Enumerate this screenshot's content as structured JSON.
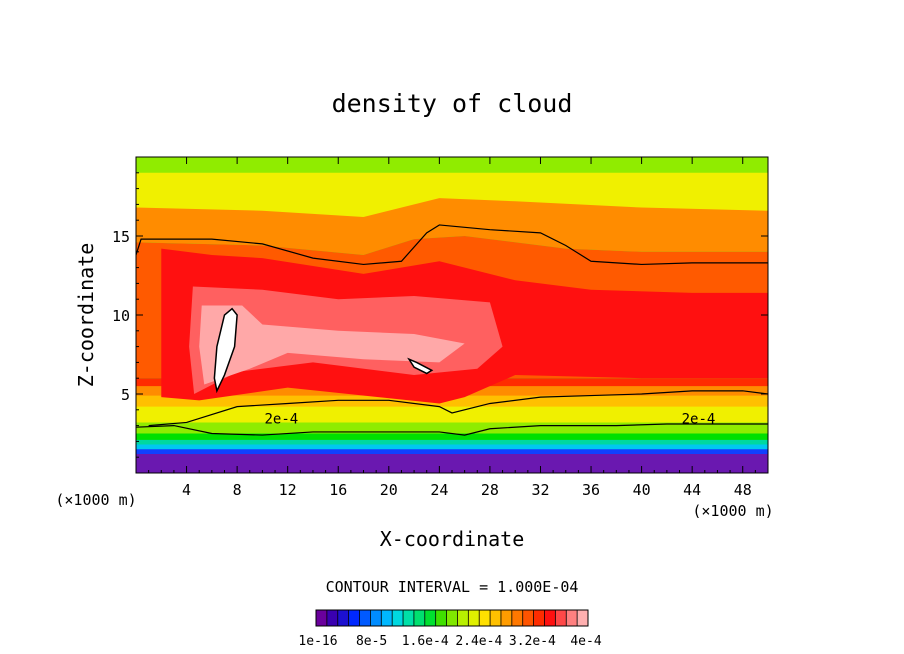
{
  "chart_data": {
    "type": "heatmap",
    "title": "density of cloud",
    "xlabel": "X-coordinate",
    "ylabel": "Z-coordinate",
    "x_unit": "(×1000 m)",
    "y_unit": "(×1000 m)",
    "xlim": [
      0,
      50
    ],
    "ylim": [
      0,
      20
    ],
    "x_ticks": [
      4,
      8,
      12,
      16,
      20,
      24,
      28,
      32,
      36,
      40,
      44,
      48
    ],
    "y_ticks": [
      5,
      10,
      15
    ],
    "contour_interval_label": "CONTOUR INTERVAL = 1.000E-04",
    "contour_labels": [
      {
        "text": "2e-4",
        "x": 11.5,
        "y": 3.0
      },
      {
        "text": "2e-4",
        "x": 44.5,
        "y": 3.0
      }
    ],
    "colorbar": {
      "tick_labels": [
        "1e-16",
        "8e-5",
        "1.6e-4",
        "2.4e-4",
        "3.2e-4",
        "4e-4"
      ],
      "colors": [
        "#6a009c",
        "#3a00b0",
        "#1c10d0",
        "#0028ff",
        "#005aff",
        "#008cff",
        "#00b8ff",
        "#00d8e0",
        "#00e0a8",
        "#00e070",
        "#00e030",
        "#40e000",
        "#80e800",
        "#b8f000",
        "#e0f000",
        "#ffe000",
        "#ffc000",
        "#ff9c00",
        "#ff7800",
        "#ff5400",
        "#ff2c00",
        "#ff1010",
        "#ff4848",
        "#ff8080",
        "#ffb0b0"
      ]
    },
    "levels": [
      {
        "name": "violet",
        "color": "#6a18b0",
        "profile": [
          [
            0,
            1.2
          ],
          [
            50,
            1.2
          ]
        ]
      },
      {
        "name": "blue",
        "color": "#1040ff",
        "profile": [
          [
            0,
            1.5
          ],
          [
            50,
            1.5
          ]
        ]
      },
      {
        "name": "cyan",
        "color": "#00c8f0",
        "profile": [
          [
            0,
            1.8
          ],
          [
            50,
            1.8
          ]
        ]
      },
      {
        "name": "teal",
        "color": "#00d8a0",
        "profile": [
          [
            0,
            2.1
          ],
          [
            50,
            2.1
          ]
        ]
      },
      {
        "name": "green",
        "color": "#00e000",
        "profile": [
          [
            0,
            2.5
          ],
          [
            50,
            2.5
          ]
        ]
      },
      {
        "name": "yellow-green",
        "color": "#90ec00",
        "profile": [
          [
            0,
            3.2
          ],
          [
            50,
            3.2
          ]
        ]
      },
      {
        "name": "yellow",
        "color": "#f0f000",
        "profile": [
          [
            0,
            4.2
          ],
          [
            50,
            4.2
          ]
        ]
      },
      {
        "name": "orange-light",
        "color": "#ffc000",
        "profile": [
          [
            0,
            4.9
          ],
          [
            50,
            4.9
          ]
        ]
      },
      {
        "name": "orange",
        "color": "#ff8c00",
        "profile": [
          [
            0,
            5.5
          ],
          [
            50,
            5.5
          ]
        ]
      },
      {
        "name": "red",
        "color": "#ff2c00",
        "profile": [
          [
            0,
            6.0
          ],
          [
            50,
            6.0
          ]
        ]
      }
    ],
    "top_layers": [
      {
        "name": "orange-top",
        "color": "#ff8c00",
        "profile": [
          [
            0,
            14.6
          ],
          [
            10,
            14.4
          ],
          [
            18,
            13.8
          ],
          [
            22,
            14.8
          ],
          [
            26,
            15.0
          ],
          [
            34,
            14.2
          ],
          [
            40,
            14.0
          ],
          [
            50,
            14.0
          ]
        ]
      },
      {
        "name": "yellow-top",
        "color": "#f0f000",
        "profile": [
          [
            0,
            16.8
          ],
          [
            10,
            16.6
          ],
          [
            18,
            16.2
          ],
          [
            24,
            17.4
          ],
          [
            30,
            17.2
          ],
          [
            40,
            16.8
          ],
          [
            50,
            16.6
          ]
        ]
      },
      {
        "name": "green-top",
        "color": "#90ec00",
        "profile": [
          [
            0,
            19.0
          ],
          [
            50,
            19.0
          ]
        ]
      }
    ],
    "cloud_core": [
      {
        "color": "#ff1010",
        "polygon": [
          [
            2,
            14.2
          ],
          [
            6,
            13.8
          ],
          [
            10,
            13.6
          ],
          [
            18,
            12.6
          ],
          [
            24,
            13.4
          ],
          [
            30,
            12.2
          ],
          [
            36,
            11.6
          ],
          [
            44,
            11.4
          ],
          [
            50,
            11.4
          ],
          [
            50,
            6.0
          ],
          [
            40,
            6.0
          ],
          [
            30,
            6.2
          ],
          [
            26,
            4.8
          ],
          [
            24,
            4.4
          ],
          [
            12,
            5.4
          ],
          [
            5,
            4.6
          ],
          [
            2,
            4.8
          ]
        ]
      },
      {
        "color": "#ff6060",
        "polygon": [
          [
            4.5,
            11.8
          ],
          [
            10,
            11.6
          ],
          [
            16,
            11.0
          ],
          [
            22,
            11.2
          ],
          [
            28,
            10.8
          ],
          [
            29,
            8.0
          ],
          [
            27,
            6.6
          ],
          [
            22,
            6.2
          ],
          [
            14,
            7.0
          ],
          [
            8,
            6.4
          ],
          [
            4.6,
            5.0
          ],
          [
            4.2,
            8.0
          ]
        ]
      },
      {
        "color": "#ffa8a8",
        "polygon": [
          [
            5.2,
            10.6
          ],
          [
            8.4,
            10.6
          ],
          [
            10,
            9.4
          ],
          [
            16,
            9.0
          ],
          [
            22,
            8.8
          ],
          [
            26,
            8.2
          ],
          [
            24,
            7.0
          ],
          [
            18,
            7.2
          ],
          [
            12,
            7.6
          ],
          [
            9,
            6.6
          ],
          [
            5.4,
            5.6
          ],
          [
            5.0,
            8.0
          ]
        ]
      }
    ],
    "white_patches": [
      {
        "name": "max-core-left",
        "polygon": [
          [
            6.2,
            6.0
          ],
          [
            6.4,
            8.0
          ],
          [
            7.0,
            10.0
          ],
          [
            7.6,
            10.4
          ],
          [
            8.0,
            10.0
          ],
          [
            7.8,
            8.0
          ],
          [
            7.0,
            6.2
          ],
          [
            6.4,
            5.2
          ]
        ]
      },
      {
        "name": "max-core-mid",
        "polygon": [
          [
            21.6,
            7.2
          ],
          [
            22.2,
            7.0
          ],
          [
            23.4,
            6.5
          ],
          [
            23.0,
            6.3
          ],
          [
            22.0,
            6.7
          ]
        ]
      }
    ],
    "contour_lines": [
      {
        "name": "upper-contour",
        "points": [
          [
            0,
            13.8
          ],
          [
            0.4,
            14.8
          ],
          [
            6,
            14.8
          ],
          [
            10,
            14.5
          ],
          [
            14,
            13.6
          ],
          [
            18,
            13.2
          ],
          [
            21,
            13.4
          ],
          [
            23,
            15.2
          ],
          [
            24,
            15.7
          ],
          [
            28,
            15.4
          ],
          [
            32,
            15.2
          ],
          [
            34,
            14.4
          ],
          [
            36,
            13.4
          ],
          [
            40,
            13.2
          ],
          [
            44,
            13.3
          ],
          [
            50,
            13.3
          ]
        ]
      },
      {
        "name": "mid-contour",
        "points": [
          [
            1,
            3.0
          ],
          [
            4,
            3.2
          ],
          [
            8,
            4.2
          ],
          [
            12,
            4.4
          ],
          [
            16,
            4.6
          ],
          [
            20,
            4.6
          ],
          [
            24,
            4.2
          ],
          [
            25,
            3.8
          ],
          [
            28,
            4.4
          ],
          [
            32,
            4.8
          ],
          [
            36,
            4.9
          ],
          [
            40,
            5.0
          ],
          [
            44,
            5.2
          ],
          [
            48,
            5.2
          ],
          [
            50,
            5.0
          ]
        ]
      },
      {
        "name": "lower-contour",
        "points": [
          [
            0,
            2.9
          ],
          [
            3,
            3.0
          ],
          [
            6,
            2.5
          ],
          [
            10,
            2.4
          ],
          [
            14,
            2.6
          ],
          [
            20,
            2.6
          ],
          [
            24,
            2.6
          ],
          [
            26,
            2.4
          ],
          [
            28,
            2.8
          ],
          [
            32,
            3.0
          ],
          [
            38,
            3.0
          ],
          [
            42,
            3.1
          ],
          [
            46,
            3.1
          ],
          [
            50,
            3.1
          ]
        ]
      }
    ]
  }
}
